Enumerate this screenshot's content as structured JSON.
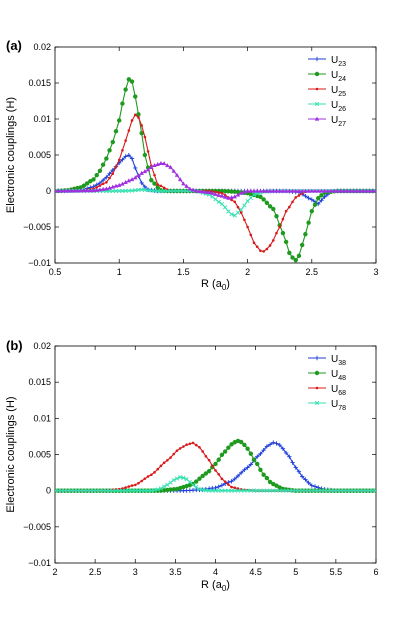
{
  "chart_data": [
    {
      "type": "line",
      "panel_label": "(a)",
      "xlabel_main": "R (a",
      "xlabel_sub": "0",
      "xlabel_close": ")",
      "ylabel": "Electronic couplings (H)",
      "xlim": [
        0.5,
        3.0
      ],
      "ylim": [
        -0.01,
        0.02
      ],
      "xticks": [
        0.5,
        1,
        1.5,
        2,
        2.5,
        3
      ],
      "xtick_labels": [
        "0.5",
        "1",
        "1.5",
        "2",
        "2.5",
        "3"
      ],
      "yticks": [
        -0.01,
        -0.005,
        0,
        0.005,
        0.01,
        0.015,
        0.02
      ],
      "ytick_labels": [
        "−0.01",
        "−0.005",
        "0",
        "0.005",
        "0.01",
        "0.015",
        "0.02"
      ],
      "grid": false,
      "legend_position": "top-right",
      "x_step": 0.025,
      "series": [
        {
          "name": "U",
          "sub": "23",
          "color": "#1f3fd9",
          "marker": "plus",
          "points": [
            [
              0.5,
              0.0
            ],
            [
              0.6,
              2e-05
            ],
            [
              0.7,
              0.0001
            ],
            [
              0.8,
              0.0006
            ],
            [
              0.85,
              0.0011
            ],
            [
              0.9,
              0.0019
            ],
            [
              0.95,
              0.0029
            ],
            [
              1.0,
              0.0039
            ],
            [
              1.05,
              0.0048
            ],
            [
              1.08,
              0.005
            ],
            [
              1.1,
              0.0045
            ],
            [
              1.13,
              0.003
            ],
            [
              1.17,
              0.0012
            ],
            [
              1.22,
              0.0002
            ],
            [
              1.3,
              0.0
            ],
            [
              1.8,
              0.0
            ],
            [
              2.0,
              0.0
            ],
            [
              2.3,
              0.0
            ],
            [
              2.4,
              -0.0002
            ],
            [
              2.5,
              -0.0012
            ],
            [
              2.55,
              -0.0018
            ],
            [
              2.6,
              -0.0008
            ],
            [
              2.65,
              -0.0001
            ],
            [
              2.7,
              0.0
            ],
            [
              3.0,
              0.0
            ]
          ]
        },
        {
          "name": "U",
          "sub": "24",
          "color": "#1e9a1e",
          "marker": "circle",
          "points": [
            [
              0.5,
              0.0
            ],
            [
              0.6,
              0.0001
            ],
            [
              0.7,
              0.0005
            ],
            [
              0.8,
              0.0016
            ],
            [
              0.85,
              0.0028
            ],
            [
              0.9,
              0.0045
            ],
            [
              0.95,
              0.0068
            ],
            [
              1.0,
              0.0098
            ],
            [
              1.03,
              0.0125
            ],
            [
              1.06,
              0.0148
            ],
            [
              1.08,
              0.0157
            ],
            [
              1.1,
              0.0152
            ],
            [
              1.13,
              0.0128
            ],
            [
              1.17,
              0.0085
            ],
            [
              1.2,
              0.005
            ],
            [
              1.25,
              0.0015
            ],
            [
              1.32,
              0.0001
            ],
            [
              1.4,
              0.0
            ],
            [
              1.8,
              0.0
            ],
            [
              1.9,
              -0.0001
            ],
            [
              2.0,
              -0.0003
            ],
            [
              2.1,
              -0.0008
            ],
            [
              2.2,
              -0.0025
            ],
            [
              2.28,
              -0.006
            ],
            [
              2.33,
              -0.0088
            ],
            [
              2.37,
              -0.0097
            ],
            [
              2.4,
              -0.009
            ],
            [
              2.45,
              -0.006
            ],
            [
              2.5,
              -0.0028
            ],
            [
              2.55,
              -0.001
            ],
            [
              2.6,
              -0.0002
            ],
            [
              2.7,
              0.0
            ],
            [
              3.0,
              0.0
            ]
          ]
        },
        {
          "name": "U",
          "sub": "25",
          "color": "#d91a1a",
          "marker": "dot",
          "points": [
            [
              0.5,
              0.0
            ],
            [
              0.7,
              5e-05
            ],
            [
              0.8,
              0.0003
            ],
            [
              0.9,
              0.0012
            ],
            [
              0.95,
              0.0024
            ],
            [
              1.0,
              0.0043
            ],
            [
              1.05,
              0.007
            ],
            [
              1.1,
              0.0098
            ],
            [
              1.13,
              0.0107
            ],
            [
              1.16,
              0.01
            ],
            [
              1.2,
              0.0075
            ],
            [
              1.25,
              0.0035
            ],
            [
              1.3,
              0.0009
            ],
            [
              1.4,
              0.0
            ],
            [
              1.7,
              0.0
            ],
            [
              1.8,
              -0.0003
            ],
            [
              1.9,
              -0.0015
            ],
            [
              1.95,
              -0.003
            ],
            [
              2.0,
              -0.005
            ],
            [
              2.05,
              -0.0072
            ],
            [
              2.1,
              -0.0083
            ],
            [
              2.13,
              -0.0084
            ],
            [
              2.18,
              -0.0075
            ],
            [
              2.25,
              -0.005
            ],
            [
              2.3,
              -0.0028
            ],
            [
              2.38,
              -0.0008
            ],
            [
              2.45,
              -0.0001
            ],
            [
              2.5,
              0.0
            ],
            [
              3.0,
              0.0
            ]
          ]
        },
        {
          "name": "U",
          "sub": "26",
          "color": "#33e0b0",
          "marker": "x",
          "points": [
            [
              0.5,
              0.0
            ],
            [
              1.0,
              0.0
            ],
            [
              1.1,
              5e-05
            ],
            [
              1.17,
              0.0002
            ],
            [
              1.22,
              0.0001
            ],
            [
              1.3,
              0.0
            ],
            [
              1.6,
              0.0
            ],
            [
              1.7,
              -0.0005
            ],
            [
              1.8,
              -0.0018
            ],
            [
              1.87,
              -0.0032
            ],
            [
              1.9,
              -0.0034
            ],
            [
              1.95,
              -0.0026
            ],
            [
              2.0,
              -0.0014
            ],
            [
              2.05,
              -0.0005
            ],
            [
              2.12,
              -0.0001
            ],
            [
              2.2,
              0.0
            ],
            [
              3.0,
              0.0
            ]
          ]
        },
        {
          "name": "U",
          "sub": "27",
          "color": "#a030e0",
          "marker": "triangle",
          "points": [
            [
              0.5,
              0.0
            ],
            [
              0.8,
              5e-05
            ],
            [
              0.9,
              0.0003
            ],
            [
              1.0,
              0.0008
            ],
            [
              1.1,
              0.0016
            ],
            [
              1.2,
              0.0027
            ],
            [
              1.28,
              0.0036
            ],
            [
              1.34,
              0.0039
            ],
            [
              1.4,
              0.0033
            ],
            [
              1.45,
              0.0022
            ],
            [
              1.5,
              0.001
            ],
            [
              1.55,
              0.0003
            ],
            [
              1.6,
              0.0
            ],
            [
              1.7,
              -0.0002
            ],
            [
              1.8,
              -0.0007
            ],
            [
              1.85,
              -0.001
            ],
            [
              1.9,
              -0.0008
            ],
            [
              1.95,
              -0.0003
            ],
            [
              2.0,
              0.0
            ],
            [
              3.0,
              0.0
            ]
          ]
        }
      ]
    },
    {
      "type": "line",
      "panel_label": "(b)",
      "xlabel_main": "R (a",
      "xlabel_sub": "0",
      "xlabel_close": ")",
      "ylabel": "Electronic couplings (H)",
      "xlim": [
        2.0,
        6.0
      ],
      "ylim": [
        -0.01,
        0.02
      ],
      "xticks": [
        2,
        2.5,
        3,
        3.5,
        4,
        4.5,
        5,
        5.5,
        6
      ],
      "xtick_labels": [
        "2",
        "2.5",
        "3",
        "3.5",
        "4",
        "4.5",
        "5",
        "5.5",
        "6"
      ],
      "yticks": [
        -0.01,
        -0.005,
        0,
        0.005,
        0.01,
        0.015,
        0.02
      ],
      "ytick_labels": [
        "−0.01",
        "−0.005",
        "0",
        "0.005",
        "0.01",
        "0.015",
        "0.02"
      ],
      "grid": false,
      "legend_position": "top-right",
      "x_step": 0.04,
      "series": [
        {
          "name": "U",
          "sub": "38",
          "color": "#1f3fd9",
          "marker": "plus",
          "points": [
            [
              2.0,
              0.0
            ],
            [
              3.6,
              0.0
            ],
            [
              3.8,
              0.0001
            ],
            [
              4.0,
              0.0004
            ],
            [
              4.2,
              0.0013
            ],
            [
              4.4,
              0.0032
            ],
            [
              4.55,
              0.005
            ],
            [
              4.65,
              0.0062
            ],
            [
              4.73,
              0.0067
            ],
            [
              4.8,
              0.0063
            ],
            [
              4.9,
              0.005
            ],
            [
              5.0,
              0.0032
            ],
            [
              5.1,
              0.0017
            ],
            [
              5.2,
              0.0007
            ],
            [
              5.35,
              0.0002
            ],
            [
              5.5,
              0.0
            ],
            [
              6.0,
              0.0
            ]
          ]
        },
        {
          "name": "U",
          "sub": "48",
          "color": "#1e9a1e",
          "marker": "circle",
          "points": [
            [
              2.0,
              0.0
            ],
            [
              3.3,
              0.0
            ],
            [
              3.5,
              0.0002
            ],
            [
              3.7,
              0.0008
            ],
            [
              3.9,
              0.0025
            ],
            [
              4.0,
              0.0037
            ],
            [
              4.1,
              0.0052
            ],
            [
              4.2,
              0.0064
            ],
            [
              4.27,
              0.0069
            ],
            [
              4.33,
              0.0067
            ],
            [
              4.4,
              0.0058
            ],
            [
              4.5,
              0.004
            ],
            [
              4.6,
              0.0022
            ],
            [
              4.7,
              0.001
            ],
            [
              4.85,
              0.0002
            ],
            [
              5.0,
              0.0
            ],
            [
              6.0,
              0.0
            ]
          ]
        },
        {
          "name": "U",
          "sub": "68",
          "color": "#d91a1a",
          "marker": "dot",
          "points": [
            [
              2.0,
              0.0
            ],
            [
              2.6,
              0.0
            ],
            [
              2.8,
              0.0002
            ],
            [
              3.0,
              0.0008
            ],
            [
              3.2,
              0.0022
            ],
            [
              3.4,
              0.0042
            ],
            [
              3.55,
              0.0058
            ],
            [
              3.65,
              0.0064
            ],
            [
              3.72,
              0.0066
            ],
            [
              3.8,
              0.006
            ],
            [
              3.9,
              0.0045
            ],
            [
              4.0,
              0.0028
            ],
            [
              4.1,
              0.0014
            ],
            [
              4.2,
              0.0005
            ],
            [
              4.35,
              0.0001
            ],
            [
              4.5,
              0.0
            ],
            [
              6.0,
              0.0
            ]
          ]
        },
        {
          "name": "U",
          "sub": "78",
          "color": "#33e0b0",
          "marker": "x",
          "points": [
            [
              2.0,
              0.0
            ],
            [
              3.2,
              0.0
            ],
            [
              3.3,
              0.0002
            ],
            [
              3.4,
              0.0008
            ],
            [
              3.5,
              0.0016
            ],
            [
              3.57,
              0.0019
            ],
            [
              3.64,
              0.0016
            ],
            [
              3.72,
              0.0008
            ],
            [
              3.8,
              0.0002
            ],
            [
              3.9,
              0.0
            ],
            [
              6.0,
              0.0
            ]
          ]
        }
      ]
    }
  ]
}
